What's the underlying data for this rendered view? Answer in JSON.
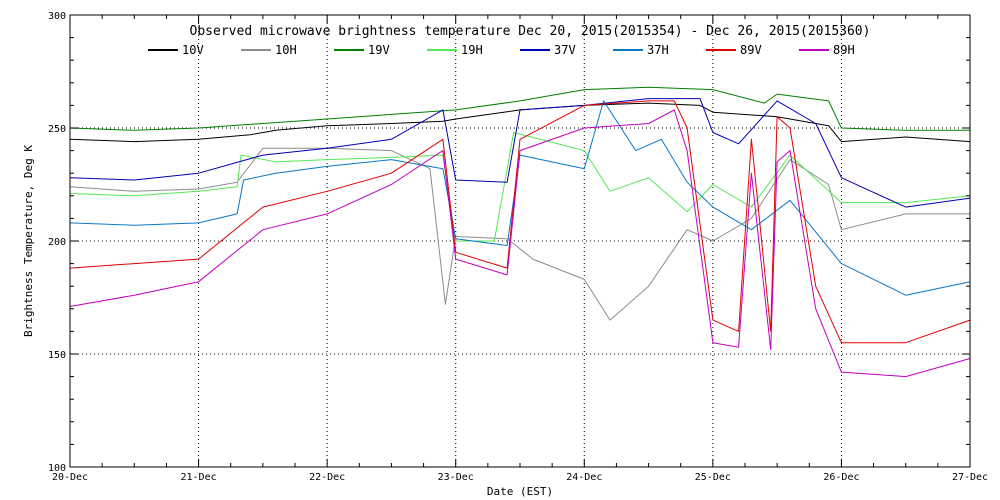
{
  "chart_data": {
    "type": "line",
    "title": "Observed microwave brightness temperature Dec 20, 2015(2015354) - Dec 26, 2015(2015360)",
    "xlabel": "Date (EST)",
    "ylabel": "Brightness Temperature, Deg K",
    "ylim": [
      100,
      300
    ],
    "xlim": [
      0,
      7
    ],
    "yticks": [
      100,
      150,
      200,
      250,
      300
    ],
    "xticks": [
      {
        "x": 0,
        "label": "20-Dec"
      },
      {
        "x": 1,
        "label": "21-Dec"
      },
      {
        "x": 2,
        "label": "22-Dec"
      },
      {
        "x": 3,
        "label": "23-Dec"
      },
      {
        "x": 4,
        "label": "24-Dec"
      },
      {
        "x": 5,
        "label": "25-Dec"
      },
      {
        "x": 6,
        "label": "26-Dec"
      },
      {
        "x": 7,
        "label": "27-Dec"
      }
    ],
    "grid": true,
    "legend_position": "top",
    "series": [
      {
        "name": "10V",
        "color": "#000000",
        "x": [
          0,
          0.5,
          1,
          1.4,
          1.6,
          2,
          2.5,
          2.9,
          3,
          3.5,
          4,
          4.5,
          4.9,
          5,
          5.5,
          5.9,
          6,
          6.5,
          7
        ],
        "y": [
          245,
          244,
          245,
          247,
          249,
          251,
          252,
          253,
          254,
          258,
          260,
          261,
          260,
          257,
          255,
          251,
          244,
          246,
          244
        ]
      },
      {
        "name": "10H",
        "color": "#8c8c8c",
        "x": [
          0,
          0.5,
          1,
          1.3,
          1.5,
          2,
          2.5,
          2.8,
          2.92,
          3,
          3.4,
          3.6,
          4,
          4.2,
          4.5,
          4.8,
          5,
          5.3,
          5.6,
          5.9,
          6,
          6.5,
          7
        ],
        "y": [
          224,
          222,
          223,
          226,
          241,
          241,
          240,
          232,
          172,
          202,
          201,
          192,
          183,
          165,
          180,
          205,
          200,
          210,
          236,
          225,
          205,
          212,
          212
        ]
      },
      {
        "name": "19V",
        "color": "#008000",
        "x": [
          0,
          0.5,
          1,
          1.5,
          2,
          2.5,
          3,
          3.5,
          4,
          4.5,
          5,
          5.4,
          5.5,
          5.9,
          6,
          6.5,
          7
        ],
        "y": [
          250,
          249,
          250,
          252,
          254,
          256,
          258,
          262,
          267,
          268,
          267,
          261,
          265,
          262,
          250,
          249,
          249
        ]
      },
      {
        "name": "19H",
        "color": "#55e855",
        "x": [
          0,
          0.5,
          1,
          1.3,
          1.33,
          1.6,
          2,
          2.5,
          2.9,
          3,
          3.3,
          3.45,
          4,
          4.2,
          4.5,
          4.8,
          5,
          5.3,
          5.6,
          6,
          6.5,
          7
        ],
        "y": [
          221,
          220,
          222,
          224,
          238,
          235,
          236,
          237,
          238,
          200,
          200,
          248,
          240,
          222,
          228,
          213,
          225,
          215,
          238,
          217,
          217,
          220
        ]
      },
      {
        "name": "37V",
        "color": "#0000b4",
        "x": [
          0,
          0.5,
          1,
          1.5,
          2,
          2.5,
          2.9,
          3,
          3.4,
          3.5,
          4,
          4.5,
          4.9,
          5,
          5.2,
          5.5,
          5.8,
          6,
          6.5,
          7
        ],
        "y": [
          228,
          227,
          230,
          238,
          241,
          245,
          258,
          227,
          226,
          258,
          260,
          263,
          263,
          248,
          243,
          262,
          252,
          228,
          215,
          219
        ]
      },
      {
        "name": "37H",
        "color": "#0a78c8",
        "x": [
          0,
          0.5,
          1,
          1.3,
          1.35,
          1.6,
          2,
          2.5,
          2.9,
          3,
          3.4,
          3.5,
          4,
          4.15,
          4.4,
          4.6,
          4.8,
          5,
          5.3,
          5.6,
          6,
          6.5,
          7
        ],
        "y": [
          208,
          207,
          208,
          212,
          227,
          230,
          233,
          236,
          232,
          201,
          198,
          238,
          232,
          262,
          240,
          245,
          226,
          215,
          205,
          218,
          190,
          176,
          182
        ]
      },
      {
        "name": "89V",
        "color": "#e00000",
        "x": [
          0,
          0.5,
          1,
          1.5,
          2,
          2.5,
          2.9,
          3,
          3.4,
          3.5,
          4,
          4.5,
          4.7,
          4.8,
          5,
          5.2,
          5.3,
          5.45,
          5.5,
          5.6,
          5.8,
          6,
          6.5,
          7
        ],
        "y": [
          188,
          190,
          192,
          215,
          222,
          230,
          245,
          195,
          188,
          245,
          260,
          262,
          262,
          250,
          165,
          160,
          245,
          160,
          255,
          250,
          180,
          155,
          155,
          165
        ]
      },
      {
        "name": "89H",
        "color": "#c000c0",
        "x": [
          0,
          0.5,
          1,
          1.5,
          2,
          2.5,
          2.9,
          3,
          3.4,
          3.5,
          4,
          4.5,
          4.7,
          4.8,
          5,
          5.2,
          5.3,
          5.45,
          5.5,
          5.6,
          5.8,
          6,
          6.5,
          7
        ],
        "y": [
          171,
          176,
          182,
          205,
          212,
          225,
          240,
          192,
          185,
          240,
          250,
          252,
          258,
          240,
          155,
          153,
          230,
          152,
          235,
          240,
          170,
          142,
          140,
          148
        ]
      }
    ]
  }
}
